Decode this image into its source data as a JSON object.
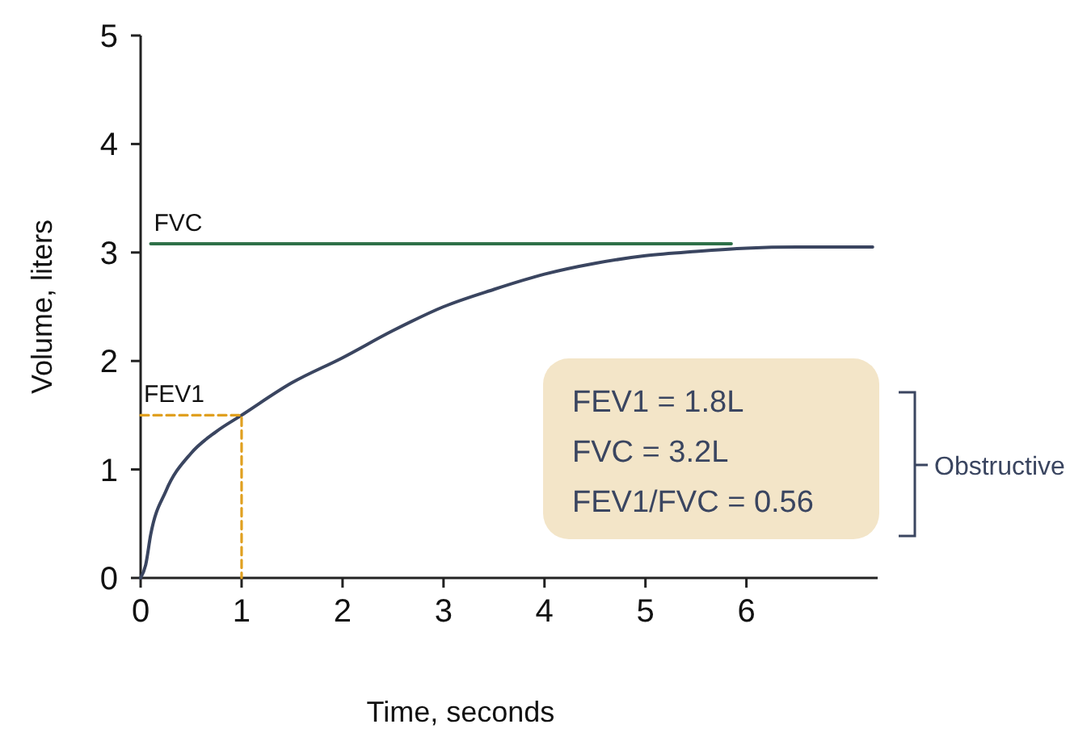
{
  "chart_data": {
    "type": "line",
    "xlabel": "Time, seconds",
    "ylabel": "Volume, liters",
    "xlim": [
      0,
      7.3
    ],
    "ylim": [
      0,
      5
    ],
    "xticks": [
      0,
      1,
      2,
      3,
      4,
      5,
      6
    ],
    "yticks": [
      0,
      1,
      2,
      3,
      4,
      5
    ],
    "marker": "none",
    "series": [
      {
        "color": "#3a4560",
        "line_style": "solid",
        "x": [
          0,
          0.05,
          0.1,
          0.25,
          0.5,
          0.75,
          1,
          1.5,
          2,
          2.5,
          3,
          3.5,
          4,
          4.5,
          5,
          5.5,
          6,
          6.5,
          7.25
        ],
        "values": [
          0,
          0.12,
          0.4,
          0.8,
          1.15,
          1.35,
          1.5,
          1.8,
          2.03,
          2.28,
          2.5,
          2.66,
          2.8,
          2.9,
          2.97,
          3.01,
          3.04,
          3.05,
          3.05
        ]
      },
      {
        "name": "FVC",
        "color": "#2e7048",
        "line_style": "solid",
        "x": [
          0.1,
          5.85
        ],
        "values": [
          3.08,
          3.08
        ]
      },
      {
        "name": "FEV1",
        "color": "#e0a020",
        "line_style": "dashed",
        "x": [
          0,
          1,
          1
        ],
        "values": [
          1.5,
          1.5,
          0
        ]
      }
    ],
    "annotations": [
      "FEV1 = 1.8L",
      "FVC = 3.2L",
      "FEV1/FVC = 0.56",
      "Obstructive"
    ]
  }
}
